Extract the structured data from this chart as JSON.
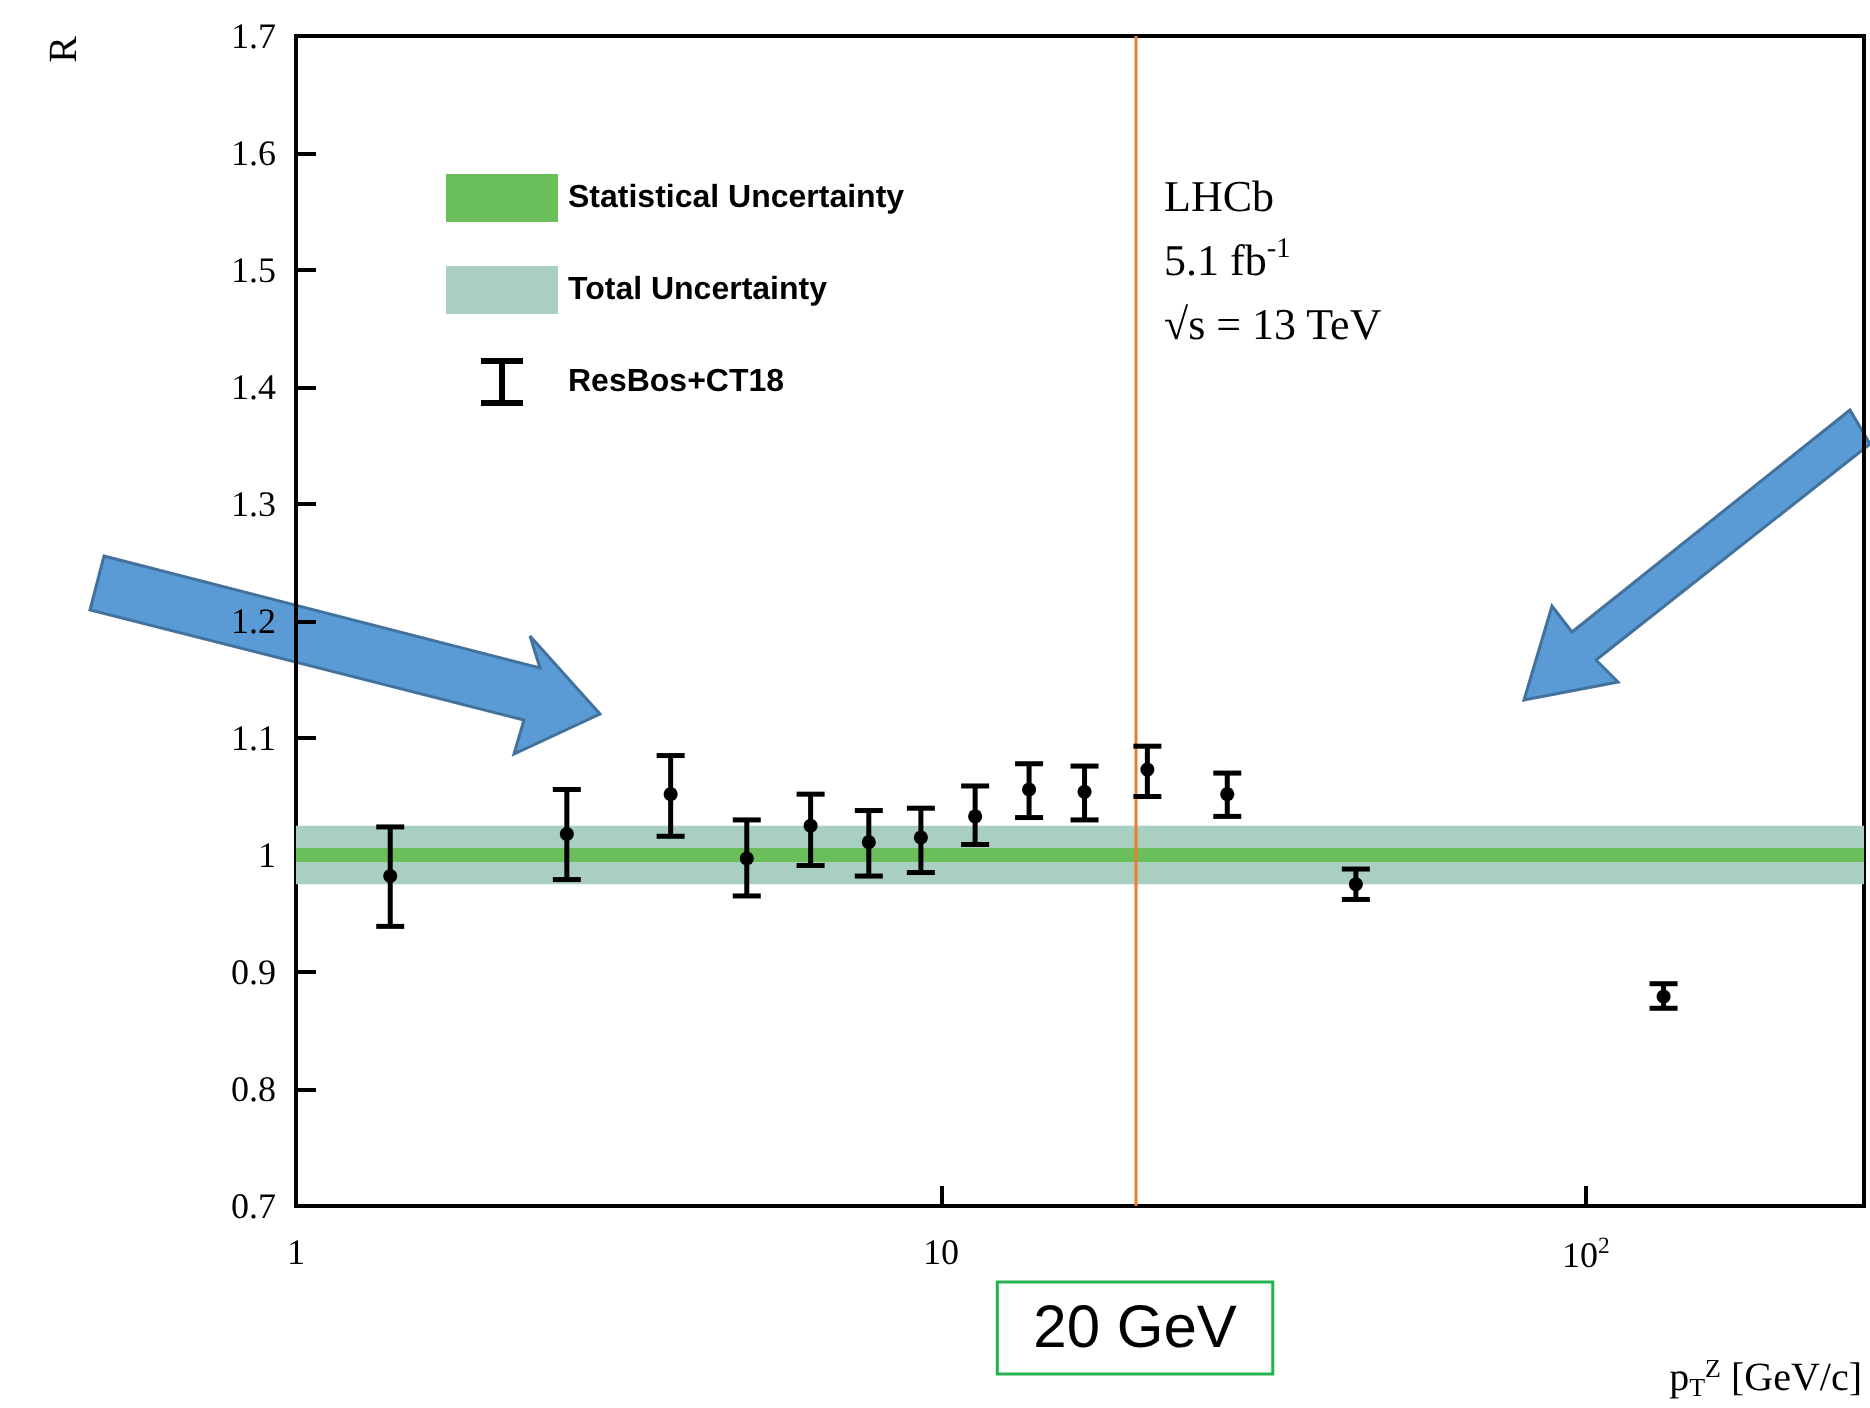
{
  "chart_data": {
    "type": "scatter",
    "ylabel": "R",
    "xlabel": "p$_{T}$$^{Z}$ [GeV/c]",
    "x": [
      1.4,
      2.63,
      3.81,
      5.0,
      6.28,
      7.73,
      9.31,
      11.3,
      13.7,
      16.7,
      20.9,
      27.8,
      44.0,
      132
    ],
    "series": [
      {
        "name": "ResBos+CT18",
        "color": "#000000",
        "values": [
          0.982,
          1.018,
          1.052,
          0.997,
          1.025,
          1.011,
          1.015,
          1.033,
          1.056,
          1.054,
          1.073,
          1.052,
          0.975,
          0.879
        ],
        "errors": [
          [
            0.939,
            1.024
          ],
          [
            0.979,
            1.056
          ],
          [
            1.016,
            1.085
          ],
          [
            0.965,
            1.03
          ],
          [
            0.991,
            1.052
          ],
          [
            0.982,
            1.038
          ],
          [
            0.985,
            1.04
          ],
          [
            1.009,
            1.059
          ],
          [
            1.032,
            1.078
          ],
          [
            1.03,
            1.076
          ],
          [
            1.05,
            1.093
          ],
          [
            1.033,
            1.07
          ],
          [
            0.962,
            0.988
          ],
          [
            0.869,
            0.89
          ]
        ]
      }
    ],
    "bands": [
      {
        "axis": "y",
        "from": 0.994,
        "to": 1.006,
        "label": "Statistical Uncertainty",
        "color": "#6abf5a"
      },
      {
        "axis": "y",
        "from": 0.975,
        "to": 1.025,
        "label": "Total Uncertainty",
        "color": "#a8cfc0"
      }
    ],
    "ref_lines": [
      {
        "axis": "x",
        "value": 20,
        "label": "20 GeV",
        "color": "#ed7d31"
      }
    ],
    "xlim": [
      1,
      270
    ],
    "xticks": [
      1,
      10,
      {
        "value": 100,
        "label": "10$^{2}$"
      }
    ],
    "ylim": [
      0.7,
      1.7
    ],
    "yticks": [
      0.7,
      0.8,
      0.9,
      1,
      1.1,
      1.2,
      1.3,
      1.4,
      1.5,
      1.6,
      1.7
    ],
    "log": "x",
    "legend": "top left",
    "marker": "circle",
    "annotations": [
      "LHCb",
      "5.1 fb$^{-1}$",
      "√s = 13 TeV"
    ]
  }
}
